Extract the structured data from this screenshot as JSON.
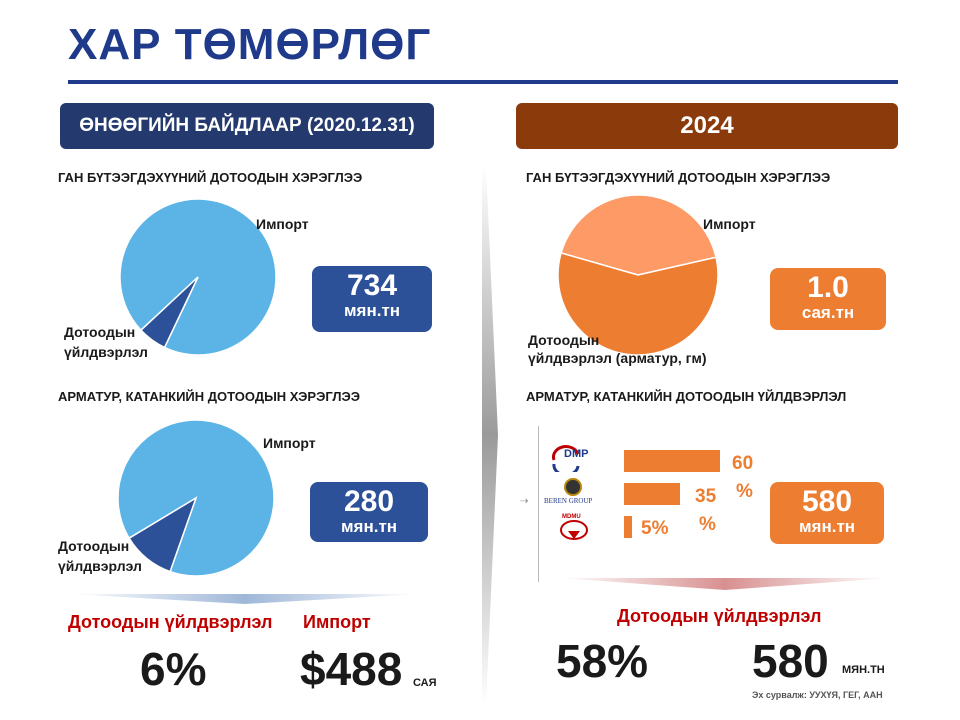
{
  "title": "ХАР ТӨМӨРЛӨГ",
  "left": {
    "header": "ӨНӨӨГИЙН БАЙДЛААР (2020.12.31)",
    "chart1": {
      "subtitle": "ГАН БҮТЭЭГДЭХҮҮНИЙ ДОТООДЫН ХЭРЭГЛЭЭ",
      "import_label": "Импорт",
      "domestic_label_1": "Дотоодын",
      "domestic_label_2": "үйлдвэрлэл",
      "value": "734",
      "unit": "мян.тн"
    },
    "chart2": {
      "subtitle": "АРМАТУР,  КАТАНКИЙН  ДОТООДЫН ХЭРЭГЛЭЭ",
      "import_label": "Импорт",
      "domestic_label_1": "Дотоодын",
      "domestic_label_2": "үйлдвэрлэл",
      "value": "280",
      "unit": "мян.тн"
    },
    "summary": {
      "domestic_label": "Дотоодын  үйлдвэрлэл",
      "import_label": "Импорт",
      "domestic_value": "6%",
      "import_value": "$488",
      "import_unit": "САЯ"
    }
  },
  "right": {
    "header": "2024",
    "chart1": {
      "subtitle": "ГАН БҮТЭЭГДЭХҮҮНИЙ ДОТООДЫН ХЭРЭГЛЭЭ",
      "import_label": "Импорт",
      "domestic_label_1": "Дотоодын",
      "domestic_label_2": "үйлдвэрлэл (арматур, гм)",
      "value": "1.0",
      "unit": "сая.тн"
    },
    "chart2": {
      "subtitle": "АРМАТУР,  КАТАНКИЙН  ДОТООДЫН ҮЙЛДВЭРЛЭЛ",
      "value": "580",
      "unit": "мян.тн",
      "company1_logo": "DMP",
      "company2_logo": "BEREN GROUP",
      "company3_logo": "MDMU",
      "bar1_label": "60",
      "bar1_suffix": "%",
      "bar2_label": "35",
      "bar2_suffix": "%",
      "bar3_label": "5%"
    },
    "summary": {
      "domestic_label": "Дотоодын үйлдвэрлэл",
      "domestic_value": "58%",
      "production_value": "580",
      "production_unit": "МЯН.ТН"
    },
    "source": "Эх сурвалж: УУХҮЯ, ГЕГ, ААН"
  },
  "chart_data": [
    {
      "type": "pie",
      "categories": [
        "Импорт",
        "Дотоодын үйлдвэрлэл"
      ],
      "values": [
        94,
        6
      ],
      "colors": [
        "#5bb4e5",
        "#2c5199"
      ]
    },
    {
      "type": "pie",
      "categories": [
        "Импорт",
        "Дотоодын үйлдвэрлэл"
      ],
      "values": [
        89,
        11
      ],
      "colors": [
        "#5bb4e5",
        "#2c5199"
      ]
    },
    {
      "type": "pie",
      "categories": [
        "Импорт",
        "Дотоодын үйлдвэрлэл (арматур, гм)"
      ],
      "values": [
        42,
        58
      ],
      "colors": [
        "#fd9a65",
        "#ed7d31"
      ]
    },
    {
      "type": "bar",
      "categories": [
        "DMP",
        "BEREN GROUP",
        "MDMU"
      ],
      "values": [
        60,
        35,
        5
      ],
      "colors": [
        "#ed7d31"
      ]
    }
  ],
  "colors": {
    "navy": "#1f3a8a",
    "blue_box": "#2c5199",
    "orange": "#ed7d31",
    "brown": "#8b3a0b",
    "red": "#c00000"
  }
}
